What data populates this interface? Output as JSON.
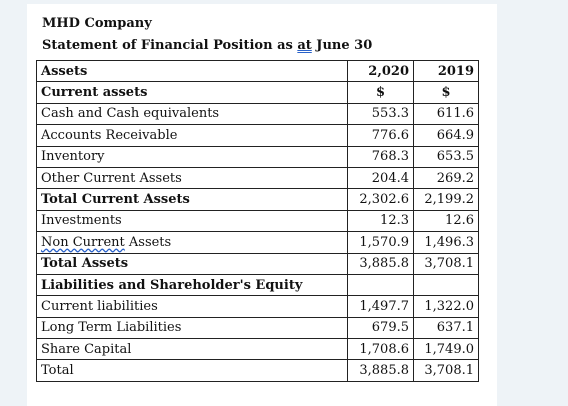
{
  "company": "MHD Company",
  "statement": {
    "prefix": "Statement of Financial Position as ",
    "at": "at",
    "suffix": " June 30"
  },
  "table": {
    "header": [
      "Assets",
      "2,020",
      "2019"
    ],
    "rows": [
      {
        "label": "Current assets",
        "v1": "$",
        "v2": "$",
        "bold": true
      },
      {
        "label": "Cash and Cash equivalents",
        "v1": "553.3",
        "v2": "611.6"
      },
      {
        "label": "Accounts Receivable",
        "v1": "776.6",
        "v2": "664.9"
      },
      {
        "label": "Inventory",
        "v1": "768.3",
        "v2": "653.5"
      },
      {
        "label": "Other Current Assets",
        "v1": "204.4",
        "v2": "269.2"
      },
      {
        "label": "Total Current Assets",
        "v1": "2,302.6",
        "v2": "2,199.2",
        "bold": true
      },
      {
        "label": "Investments",
        "v1": "12.3",
        "v2": "12.6"
      },
      {
        "label_a": "Non Current",
        "label_b": " Assets",
        "v1": "1,570.9",
        "v2": "1,496.3"
      },
      {
        "label": "Total Assets",
        "v1": "3,885.8",
        "v2": "3,708.1",
        "bold": true
      },
      {
        "label": "Liabilities and Shareholder's Equity",
        "v1": "",
        "v2": "",
        "bold": true
      },
      {
        "label": "Current liabilities",
        "v1": "1,497.7",
        "v2": "1,322.0"
      },
      {
        "label": "Long Term Liabilities",
        "v1": "679.5",
        "v2": "637.1"
      },
      {
        "label": "Share Capital",
        "v1": "1,708.6",
        "v2": "1,749.0"
      },
      {
        "label": "Total",
        "v1": "3,885.8",
        "v2": "3,708.1"
      }
    ]
  }
}
